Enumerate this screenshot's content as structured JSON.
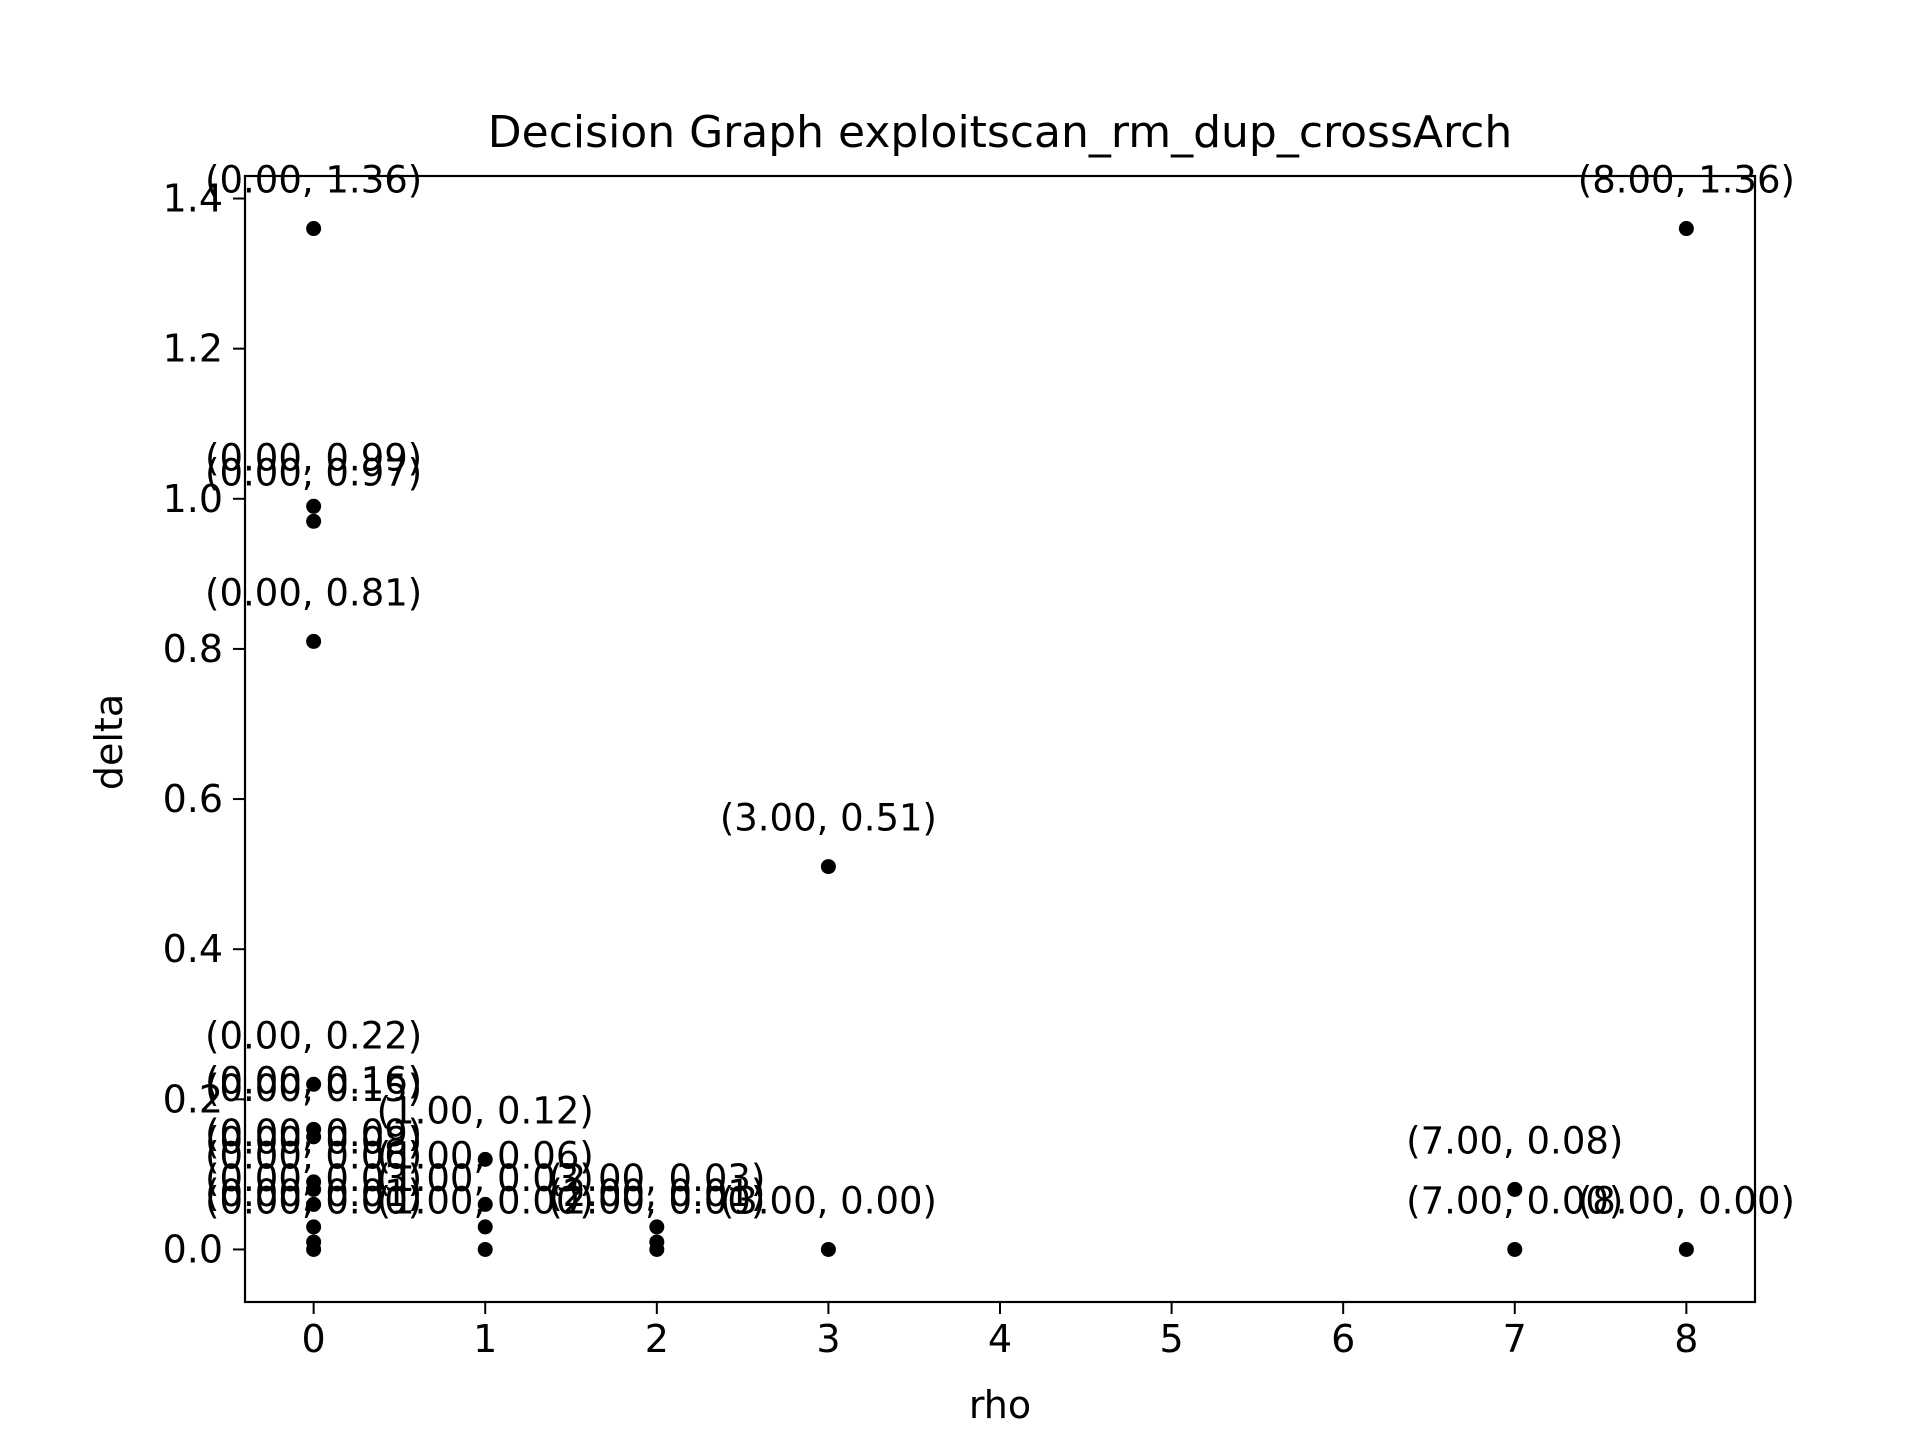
{
  "chart_data": {
    "type": "scatter",
    "title": "Decision Graph exploitscan_rm_dup_crossArch",
    "xlabel": "rho",
    "ylabel": "delta",
    "xlim": [
      -0.4,
      8.4
    ],
    "ylim": [
      -0.07,
      1.43
    ],
    "grid": false,
    "x_ticks": [
      "0",
      "1",
      "2",
      "3",
      "4",
      "5",
      "6",
      "7",
      "8"
    ],
    "y_ticks": [
      "0.0",
      "0.2",
      "0.4",
      "0.6",
      "0.8",
      "1.0",
      "1.2",
      "1.4"
    ],
    "points": [
      {
        "x": 0,
        "y": 1.36,
        "label": "(0.00, 1.36)"
      },
      {
        "x": 8,
        "y": 1.36,
        "label": "(8.00, 1.36)"
      },
      {
        "x": 0,
        "y": 0.99,
        "label": "(0.00, 0.99)"
      },
      {
        "x": 0,
        "y": 0.97,
        "label": "(0.00, 0.97)"
      },
      {
        "x": 0,
        "y": 0.81,
        "label": "(0.00, 0.81)"
      },
      {
        "x": 3,
        "y": 0.51,
        "label": "(3.00, 0.51)"
      },
      {
        "x": 0,
        "y": 0.22,
        "label": "(0.00, 0.22)"
      },
      {
        "x": 0,
        "y": 0.16,
        "label": "(0.00, 0.16)"
      },
      {
        "x": 0,
        "y": 0.15,
        "label": "(0.00, 0.15)"
      },
      {
        "x": 1,
        "y": 0.12,
        "label": "(1.00, 0.12)"
      },
      {
        "x": 0,
        "y": 0.09,
        "label": "(0.00, 0.09)"
      },
      {
        "x": 0,
        "y": 0.08,
        "label": "(0.00, 0.08)"
      },
      {
        "x": 7,
        "y": 0.08,
        "label": "(7.00, 0.08)"
      },
      {
        "x": 1,
        "y": 0.06,
        "label": "(1.00, 0.06)"
      },
      {
        "x": 0,
        "y": 0.06,
        "label": "(0.00, 0.06)"
      },
      {
        "x": 0,
        "y": 0.03,
        "label": "(0.00, 0.03)"
      },
      {
        "x": 1,
        "y": 0.03,
        "label": "(1.00, 0.03)"
      },
      {
        "x": 2,
        "y": 0.03,
        "label": "(2.00, 0.03)"
      },
      {
        "x": 0,
        "y": 0.01,
        "label": "(0.00, 0.01)"
      },
      {
        "x": 2,
        "y": 0.01,
        "label": "(2.00, 0.01)"
      },
      {
        "x": 0,
        "y": 0.0,
        "label": "(0.00, 0.00)"
      },
      {
        "x": 1,
        "y": 0.0,
        "label": "(1.00, 0.00)"
      },
      {
        "x": 2,
        "y": 0.0,
        "label": "(2.00, 0.00)"
      },
      {
        "x": 3,
        "y": 0.0,
        "label": "(3.00, 0.00)"
      },
      {
        "x": 7,
        "y": 0.0,
        "label": "(7.00, 0.00)"
      },
      {
        "x": 8,
        "y": 0.0,
        "label": "(8.00, 0.00)"
      }
    ]
  }
}
